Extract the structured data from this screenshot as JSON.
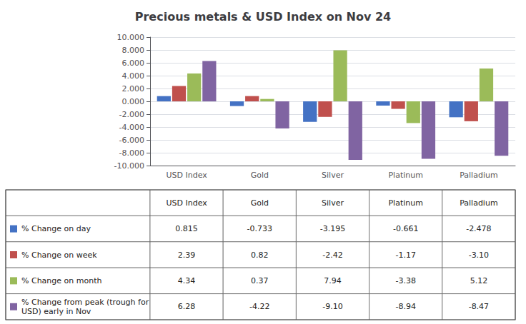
{
  "chart_data": {
    "type": "bar",
    "title": "Precious metals & USD Index on Nov 24",
    "categories": [
      "USD Index",
      "Gold",
      "Silver",
      "Platinum",
      "Palladium"
    ],
    "series": [
      {
        "name": "% Change on day",
        "color": "#4472C4",
        "values": [
          0.815,
          -0.733,
          -3.195,
          -0.661,
          -2.478
        ],
        "value_labels": [
          "0.815",
          "-0.733",
          "-3.195",
          "-0.661",
          "-2.478"
        ]
      },
      {
        "name": "% Change on week",
        "color": "#C0504D",
        "values": [
          2.39,
          0.82,
          -2.42,
          -1.17,
          -3.1
        ],
        "value_labels": [
          "2.39",
          "0.82",
          "-2.42",
          "-1.17",
          "-3.10"
        ]
      },
      {
        "name": "% Change on month",
        "color": "#9BBB59",
        "values": [
          4.34,
          0.37,
          7.94,
          -3.38,
          5.12
        ],
        "value_labels": [
          "4.34",
          "0.37",
          "7.94",
          "-3.38",
          "5.12"
        ]
      },
      {
        "name": "% Change from peak (trough for\nUSD) early in Nov",
        "color": "#8064A2",
        "values": [
          6.28,
          -4.22,
          -9.1,
          -8.94,
          -8.47
        ],
        "value_labels": [
          "6.28",
          "-4.22",
          "-9.10",
          "-8.94",
          "-8.47"
        ]
      }
    ],
    "ylim": [
      -10.0,
      10.0
    ],
    "yticks": [
      {
        "value": -10.0,
        "label": "-10.000"
      },
      {
        "value": -8.0,
        "label": "-8.000"
      },
      {
        "value": -6.0,
        "label": "-6.000"
      },
      {
        "value": -4.0,
        "label": "-4.000"
      },
      {
        "value": -2.0,
        "label": "-2.000"
      },
      {
        "value": 0.0,
        "label": "0.000"
      },
      {
        "value": 2.0,
        "label": "2.000"
      },
      {
        "value": 4.0,
        "label": "4.000"
      },
      {
        "value": 6.0,
        "label": "6.000"
      },
      {
        "value": 8.0,
        "label": "8.000"
      },
      {
        "value": 10.0,
        "label": "10.000"
      }
    ],
    "grid": true
  }
}
